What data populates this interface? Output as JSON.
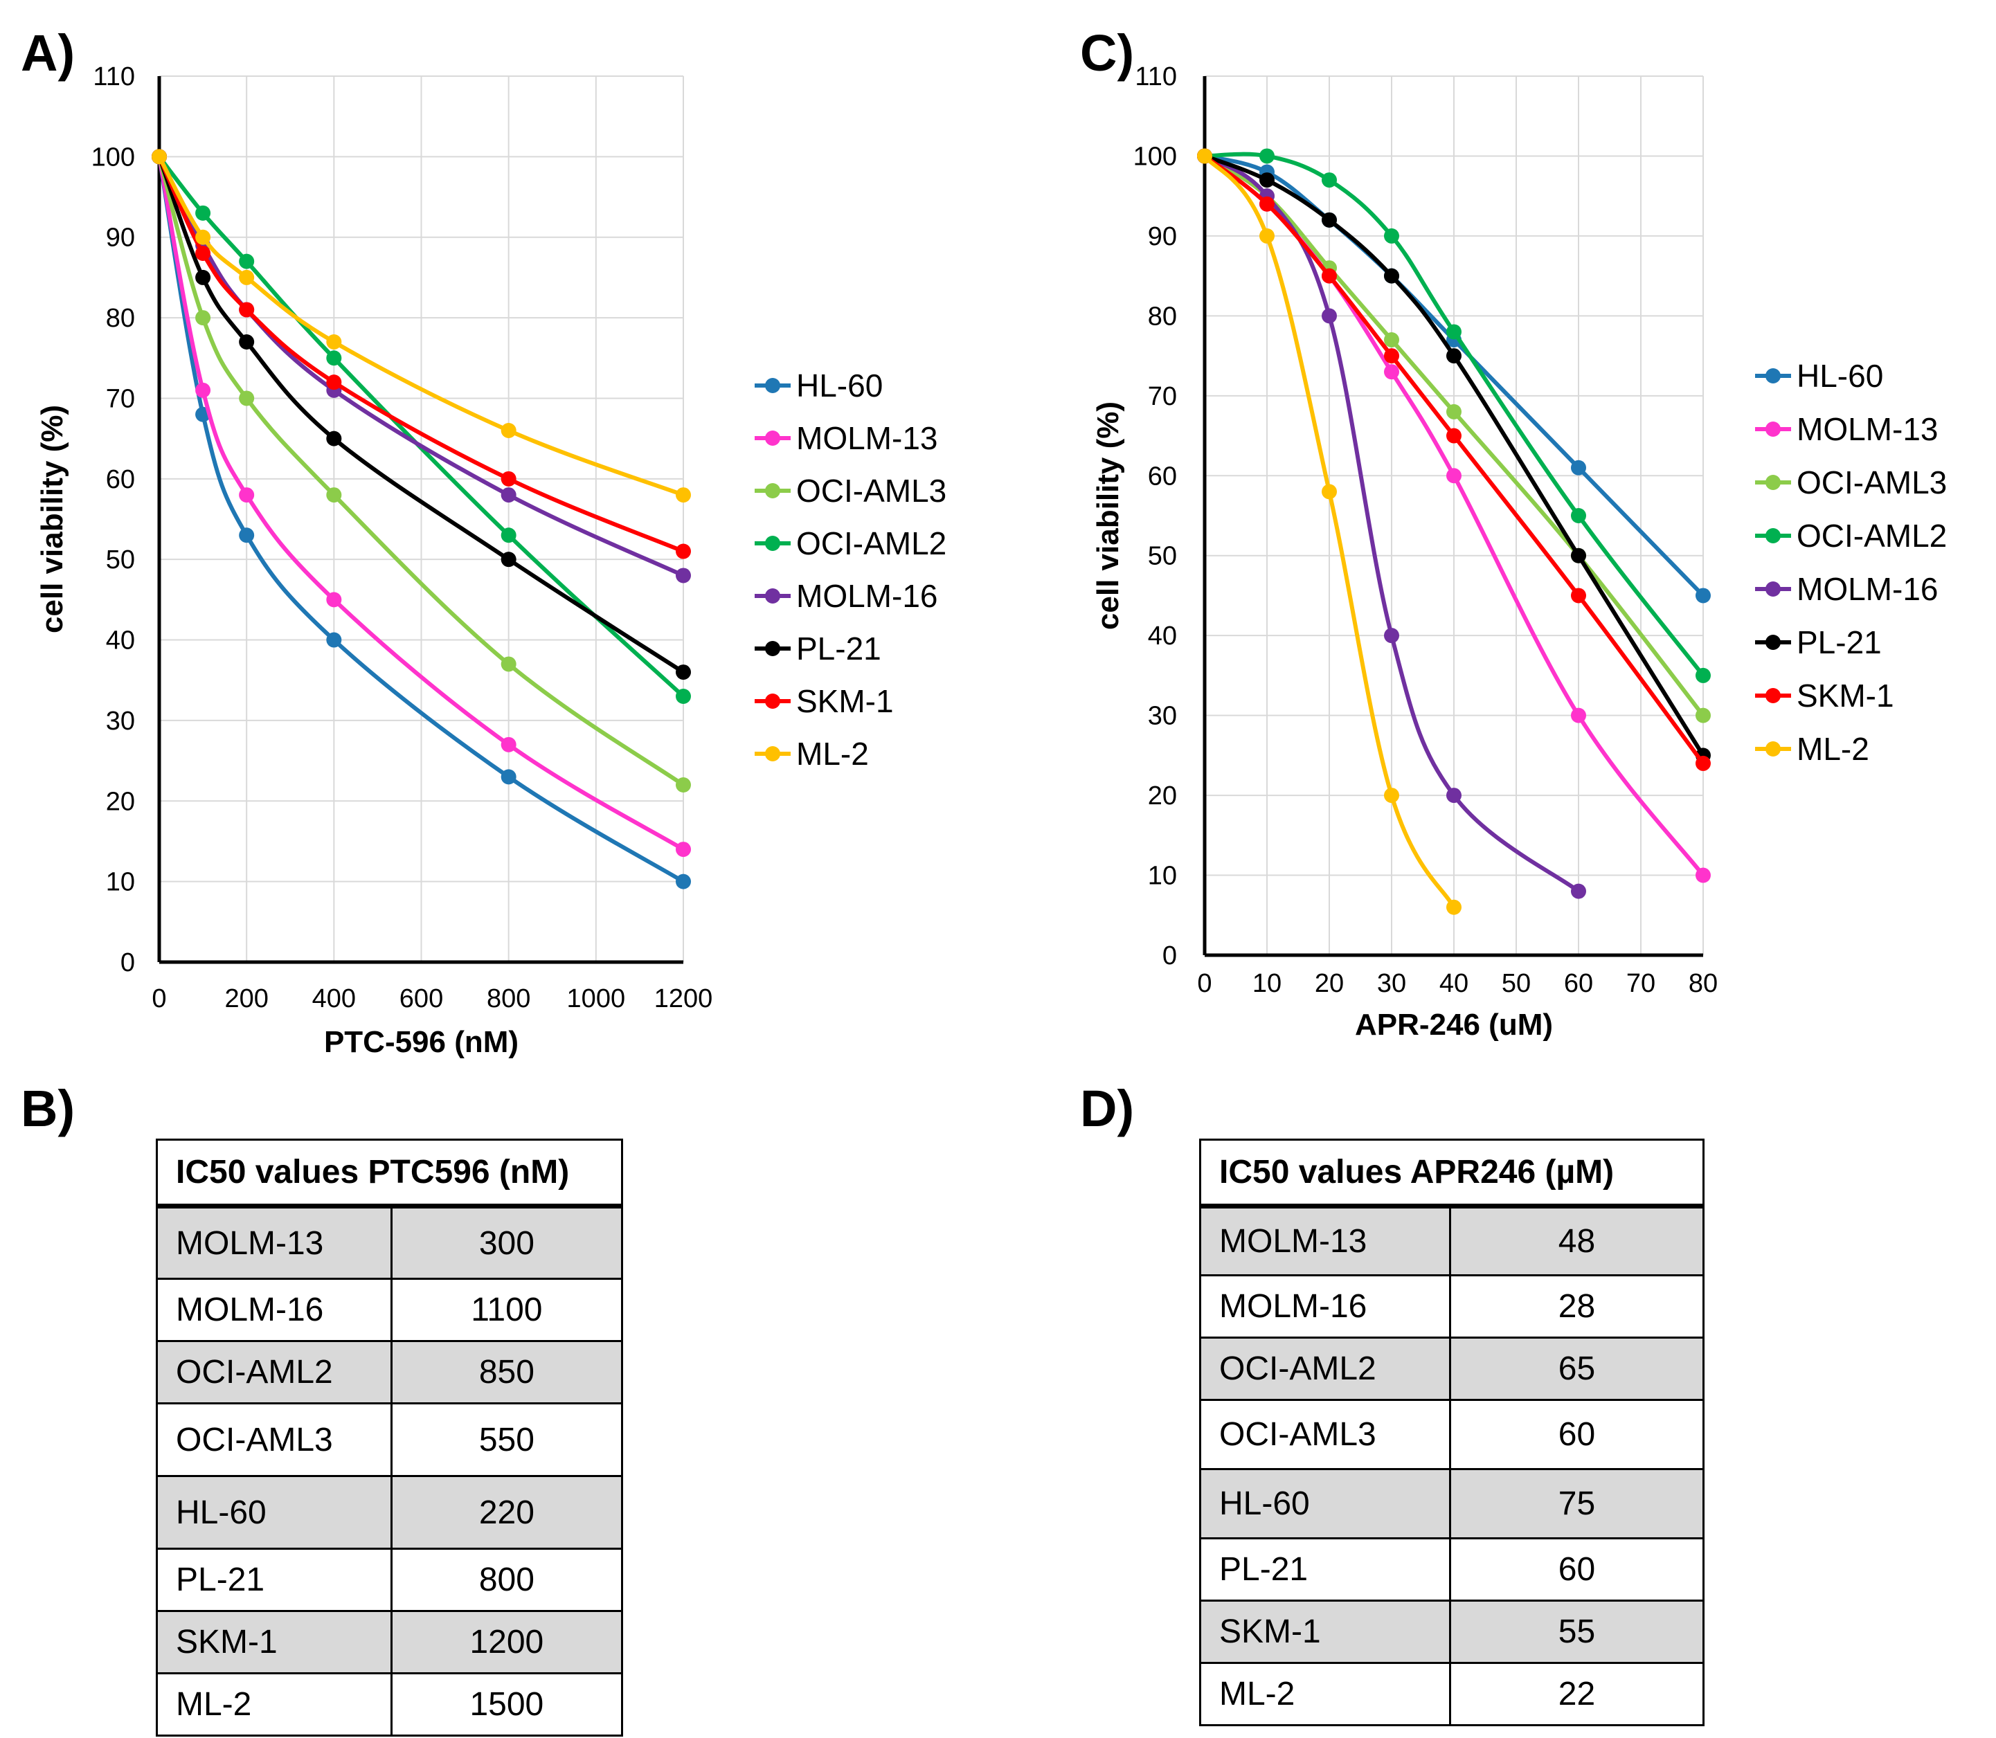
{
  "panels": {
    "a_label": "A)",
    "b_label": "B)",
    "c_label": "C)",
    "d_label": "D)"
  },
  "chart_data": [
    {
      "type": "line",
      "id": "A",
      "title": "",
      "xlabel": "PTC-596 (nM)",
      "ylabel": "cell viability (%)",
      "xlim": [
        0,
        1200
      ],
      "ylim": [
        0,
        110
      ],
      "xticks": [
        0,
        200,
        400,
        600,
        800,
        1000,
        1200
      ],
      "yticks": [
        0,
        10,
        20,
        30,
        40,
        50,
        60,
        70,
        80,
        90,
        100,
        110
      ],
      "grid": true,
      "legend": "right",
      "x": [
        0,
        100,
        200,
        400,
        800,
        1200
      ],
      "series": [
        {
          "name": "HL-60",
          "color": "#1f77b4",
          "values": [
            100,
            68,
            53,
            40,
            23,
            10
          ]
        },
        {
          "name": "MOLM-13",
          "color": "#ff33cc",
          "values": [
            100,
            71,
            58,
            45,
            27,
            14
          ]
        },
        {
          "name": "OCI-AML3",
          "color": "#8ccc4a",
          "values": [
            100,
            80,
            70,
            58,
            37,
            22
          ]
        },
        {
          "name": "OCI-AML2",
          "color": "#00b050",
          "values": [
            100,
            93,
            87,
            75,
            53,
            33
          ]
        },
        {
          "name": "MOLM-16",
          "color": "#7030a0",
          "values": [
            100,
            89,
            81,
            71,
            58,
            48
          ]
        },
        {
          "name": "PL-21",
          "color": "#000000",
          "values": [
            100,
            85,
            77,
            65,
            50,
            36
          ]
        },
        {
          "name": "SKM-1",
          "color": "#ff0000",
          "values": [
            100,
            88,
            81,
            72,
            60,
            51
          ]
        },
        {
          "name": "ML-2",
          "color": "#ffc000",
          "values": [
            100,
            90,
            85,
            77,
            66,
            58
          ]
        }
      ]
    },
    {
      "type": "line",
      "id": "C",
      "title": "",
      "xlabel": "APR-246 (uM)",
      "ylabel": "cell viability (%)",
      "xlim": [
        0,
        80
      ],
      "ylim": [
        0,
        110
      ],
      "xticks": [
        0,
        10,
        20,
        30,
        40,
        50,
        60,
        70,
        80
      ],
      "yticks": [
        0,
        10,
        20,
        30,
        40,
        50,
        60,
        70,
        80,
        90,
        100,
        110
      ],
      "grid": true,
      "legend": "right",
      "series": [
        {
          "name": "HL-60",
          "color": "#1f77b4",
          "x": [
            0,
            10,
            20,
            30,
            40,
            60,
            80
          ],
          "values": [
            100,
            98,
            92,
            85,
            77,
            61,
            45
          ]
        },
        {
          "name": "MOLM-13",
          "color": "#ff33cc",
          "x": [
            0,
            10,
            20,
            30,
            40,
            60,
            80
          ],
          "values": [
            100,
            94,
            85,
            73,
            60,
            30,
            10
          ]
        },
        {
          "name": "OCI-AML3",
          "color": "#8ccc4a",
          "x": [
            0,
            10,
            20,
            30,
            40,
            60,
            80
          ],
          "values": [
            100,
            95,
            86,
            77,
            68,
            50,
            30
          ]
        },
        {
          "name": "OCI-AML2",
          "color": "#00b050",
          "x": [
            0,
            10,
            20,
            30,
            40,
            60,
            80
          ],
          "values": [
            100,
            100,
            97,
            90,
            78,
            55,
            35
          ]
        },
        {
          "name": "MOLM-16",
          "color": "#7030a0",
          "x": [
            0,
            10,
            20,
            30,
            40,
            60
          ],
          "values": [
            100,
            95,
            80,
            40,
            20,
            8
          ]
        },
        {
          "name": "PL-21",
          "color": "#000000",
          "x": [
            0,
            10,
            20,
            30,
            40,
            60,
            80
          ],
          "values": [
            100,
            97,
            92,
            85,
            75,
            50,
            25
          ]
        },
        {
          "name": "SKM-1",
          "color": "#ff0000",
          "x": [
            0,
            10,
            20,
            30,
            40,
            60,
            80
          ],
          "values": [
            100,
            94,
            85,
            75,
            65,
            45,
            24
          ]
        },
        {
          "name": "ML-2",
          "color": "#ffc000",
          "x": [
            0,
            10,
            20,
            30,
            40
          ],
          "values": [
            100,
            90,
            58,
            20,
            6
          ]
        }
      ]
    },
    {
      "type": "table",
      "id": "B",
      "header": "IC50 values PTC596 (nM)",
      "rows": [
        {
          "cell": "MOLM-13",
          "value": "300"
        },
        {
          "cell": "MOLM-16",
          "value": "1100"
        },
        {
          "cell": "OCI-AML2",
          "value": "850"
        },
        {
          "cell": "OCI-AML3",
          "value": "550"
        },
        {
          "cell": "HL-60",
          "value": "220"
        },
        {
          "cell": "PL-21",
          "value": "800"
        },
        {
          "cell": "SKM-1",
          "value": "1200"
        },
        {
          "cell": "ML-2",
          "value": "1500"
        }
      ]
    },
    {
      "type": "table",
      "id": "D",
      "header": "IC50  values APR246 (µM)",
      "rows": [
        {
          "cell": "MOLM-13",
          "value": "48"
        },
        {
          "cell": "MOLM-16",
          "value": "28"
        },
        {
          "cell": "OCI-AML2",
          "value": "65"
        },
        {
          "cell": "OCI-AML3",
          "value": "60"
        },
        {
          "cell": "HL-60",
          "value": "75"
        },
        {
          "cell": "PL-21",
          "value": "60"
        },
        {
          "cell": "SKM-1",
          "value": "55"
        },
        {
          "cell": "ML-2",
          "value": "22"
        }
      ]
    }
  ]
}
